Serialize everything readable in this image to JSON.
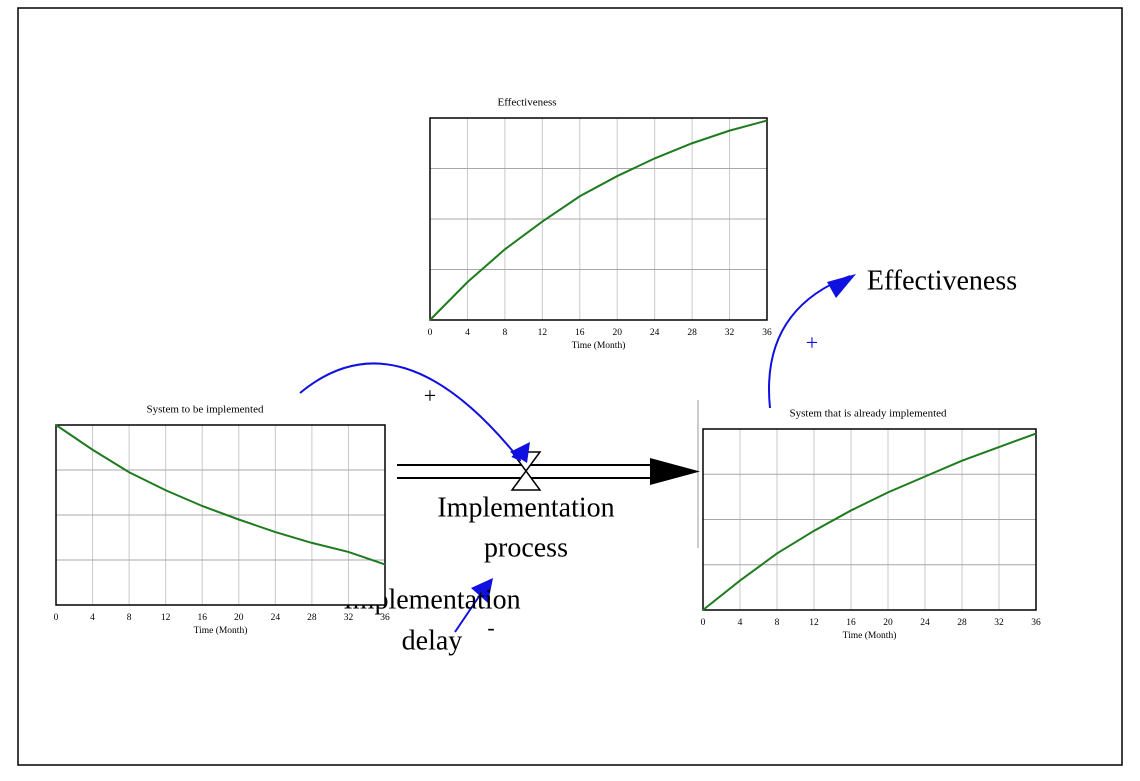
{
  "chart_data": [
    {
      "type": "line",
      "title": "Effectiveness",
      "xlabel": "Time (Month)",
      "x": [
        0,
        4,
        8,
        12,
        16,
        20,
        24,
        28,
        32,
        36
      ],
      "series": [
        {
          "color": "#1e7b1e",
          "values": [
            0,
            0.75,
            1.4,
            1.95,
            2.45,
            2.85,
            3.2,
            3.5,
            3.75,
            3.95
          ]
        }
      ],
      "xlim": [
        0,
        36
      ],
      "xticks": [
        0,
        4,
        8,
        12,
        16,
        20,
        24,
        28,
        32,
        36
      ],
      "ylim": [
        0,
        4
      ],
      "ygrid": [
        1,
        2,
        3
      ]
    },
    {
      "type": "line",
      "title": "System to be implemented",
      "xlabel": "Time (Month)",
      "x": [
        0,
        4,
        8,
        12,
        16,
        20,
        24,
        28,
        32,
        36
      ],
      "series": [
        {
          "color": "#1e7b1e",
          "values": [
            4,
            3.45,
            2.95,
            2.55,
            2.2,
            1.9,
            1.62,
            1.38,
            1.18,
            0.9
          ]
        }
      ],
      "xlim": [
        0,
        36
      ],
      "xticks": [
        0,
        4,
        8,
        12,
        16,
        20,
        24,
        28,
        32,
        36
      ],
      "ylim": [
        0,
        4
      ],
      "ygrid": [
        1,
        2,
        3
      ]
    },
    {
      "type": "line",
      "title": "System that is already implemented",
      "xlabel": "Time (Month)",
      "x": [
        0,
        4,
        8,
        12,
        16,
        20,
        24,
        28,
        32,
        36
      ],
      "series": [
        {
          "color": "#1e7b1e",
          "values": [
            0,
            0.65,
            1.25,
            1.75,
            2.2,
            2.6,
            2.95,
            3.3,
            3.6,
            3.9
          ]
        }
      ],
      "xlim": [
        0,
        36
      ],
      "xticks": [
        0,
        4,
        8,
        12,
        16,
        20,
        24,
        28,
        32,
        36
      ],
      "ylim": [
        0,
        4
      ],
      "ygrid": [
        1,
        2,
        3
      ]
    }
  ],
  "diagram": {
    "effectiveness": "Effectiveness",
    "link_inflow": "+",
    "link_effectiveness": "+",
    "link_delay": "-",
    "flow": [
      "Implementation",
      "process"
    ],
    "delay": [
      "Implementation",
      "delay"
    ]
  }
}
